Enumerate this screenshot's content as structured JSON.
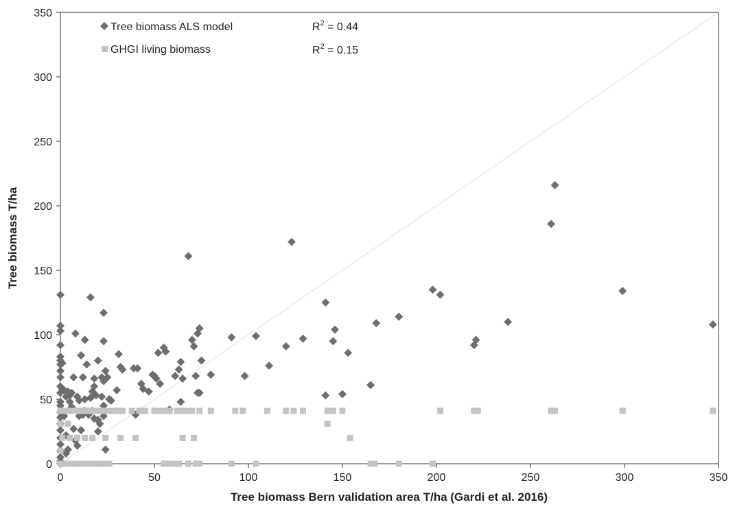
{
  "chart_data": {
    "type": "scatter",
    "xlabel": "Tree biomass Bern validation area T/ha (Gardi et al. 2016)",
    "ylabel": "Tree biomass T/ha",
    "xlim": [
      0,
      350
    ],
    "ylim": [
      0,
      350
    ],
    "x_ticks": [
      "0",
      "50",
      "100",
      "150",
      "200",
      "250",
      "300",
      "350"
    ],
    "y_ticks": [
      "0",
      "50",
      "100",
      "150",
      "200",
      "250",
      "300",
      "350"
    ],
    "grid": false,
    "reference_line": "1:1 line",
    "legend_placement": "top-left",
    "series": [
      {
        "name": "Tree biomass ALS model",
        "r2_label": "R",
        "r2_sup": "2",
        "r2_value": " = 0.44",
        "marker": "diamond",
        "color": "#6e6e6e",
        "points": [
          [
            0,
            131
          ],
          [
            0,
            107
          ],
          [
            0,
            103
          ],
          [
            0,
            92
          ],
          [
            0,
            83
          ],
          [
            0,
            80
          ],
          [
            0,
            77
          ],
          [
            0,
            72
          ],
          [
            0,
            67
          ],
          [
            0,
            60
          ],
          [
            0,
            55
          ],
          [
            0,
            48
          ],
          [
            0,
            45
          ],
          [
            0,
            40
          ],
          [
            0,
            36
          ],
          [
            0,
            31
          ],
          [
            0,
            26
          ],
          [
            0,
            20
          ],
          [
            0,
            15
          ],
          [
            0,
            10
          ],
          [
            0,
            5
          ],
          [
            0,
            2
          ],
          [
            1,
            78
          ],
          [
            1,
            58
          ],
          [
            2,
            57
          ],
          [
            2,
            37
          ],
          [
            3,
            52
          ],
          [
            3,
            22
          ],
          [
            3,
            8
          ],
          [
            4,
            56
          ],
          [
            4,
            11
          ],
          [
            5,
            53
          ],
          [
            5,
            48
          ],
          [
            6,
            55
          ],
          [
            6,
            44
          ],
          [
            7,
            67
          ],
          [
            7,
            42
          ],
          [
            7,
            27
          ],
          [
            8,
            101
          ],
          [
            8,
            18
          ],
          [
            9,
            52
          ],
          [
            9,
            14
          ],
          [
            10,
            49
          ],
          [
            10,
            37
          ],
          [
            11,
            84
          ],
          [
            11,
            26
          ],
          [
            12,
            67
          ],
          [
            12,
            38
          ],
          [
            13,
            96
          ],
          [
            13,
            50
          ],
          [
            13,
            41
          ],
          [
            14,
            77
          ],
          [
            15,
            38
          ],
          [
            16,
            129
          ],
          [
            16,
            51
          ],
          [
            17,
            56
          ],
          [
            17,
            41
          ],
          [
            18,
            66
          ],
          [
            18,
            60
          ],
          [
            18,
            35
          ],
          [
            19,
            53
          ],
          [
            20,
            34
          ],
          [
            20,
            80
          ],
          [
            20,
            25
          ],
          [
            21,
            31
          ],
          [
            22,
            67
          ],
          [
            22,
            52
          ],
          [
            23,
            117
          ],
          [
            23,
            95
          ],
          [
            23,
            64
          ],
          [
            23,
            45
          ],
          [
            23,
            37
          ],
          [
            24,
            11
          ],
          [
            24,
            72
          ],
          [
            25,
            67
          ],
          [
            26,
            50
          ],
          [
            27,
            49
          ],
          [
            30,
            57
          ],
          [
            31,
            85
          ],
          [
            32,
            75
          ],
          [
            33,
            73
          ],
          [
            39,
            74
          ],
          [
            40,
            38
          ],
          [
            41,
            74
          ],
          [
            43,
            62
          ],
          [
            44,
            58
          ],
          [
            47,
            56
          ],
          [
            49,
            69
          ],
          [
            50,
            68
          ],
          [
            51,
            66
          ],
          [
            52,
            86
          ],
          [
            53,
            62
          ],
          [
            55,
            90
          ],
          [
            56,
            87
          ],
          [
            58,
            42
          ],
          [
            61,
            68
          ],
          [
            63,
            73
          ],
          [
            64,
            79
          ],
          [
            64,
            48
          ],
          [
            65,
            66
          ],
          [
            68,
            161
          ],
          [
            70,
            96
          ],
          [
            71,
            91
          ],
          [
            72,
            68
          ],
          [
            73,
            55
          ],
          [
            73,
            101
          ],
          [
            74,
            105
          ],
          [
            74,
            55
          ],
          [
            75,
            80
          ],
          [
            80,
            69
          ],
          [
            91,
            98
          ],
          [
            98,
            68
          ],
          [
            104,
            99
          ],
          [
            111,
            76
          ],
          [
            120,
            91
          ],
          [
            123,
            172
          ],
          [
            129,
            97
          ],
          [
            141,
            125
          ],
          [
            141,
            53
          ],
          [
            145,
            95
          ],
          [
            146,
            104
          ],
          [
            150,
            54
          ],
          [
            153,
            86
          ],
          [
            165,
            61
          ],
          [
            168,
            109
          ],
          [
            180,
            114
          ],
          [
            198,
            135
          ],
          [
            202,
            131
          ],
          [
            220,
            92
          ],
          [
            221,
            96
          ],
          [
            238,
            110
          ],
          [
            261,
            186
          ],
          [
            263,
            216
          ],
          [
            299,
            134
          ],
          [
            347,
            108
          ]
        ]
      },
      {
        "name": "GHGI living biomass",
        "r2_label": "R",
        "r2_sup": "2",
        "r2_value": " = 0.15",
        "marker": "square",
        "color": "#c3c3c3",
        "points": [
          [
            0,
            0
          ],
          [
            2,
            0
          ],
          [
            4,
            0
          ],
          [
            6,
            0
          ],
          [
            8,
            0
          ],
          [
            10,
            0
          ],
          [
            12,
            0
          ],
          [
            14,
            0
          ],
          [
            16,
            0
          ],
          [
            18,
            0
          ],
          [
            20,
            0
          ],
          [
            22,
            0
          ],
          [
            24,
            0
          ],
          [
            26,
            0
          ],
          [
            55,
            0
          ],
          [
            57,
            0
          ],
          [
            60,
            0
          ],
          [
            63,
            0
          ],
          [
            68,
            0
          ],
          [
            72,
            0
          ],
          [
            74,
            0
          ],
          [
            91,
            0
          ],
          [
            104,
            0
          ],
          [
            165,
            0
          ],
          [
            167,
            0
          ],
          [
            180,
            0
          ],
          [
            198,
            0
          ],
          [
            0,
            10
          ],
          [
            1,
            20
          ],
          [
            5,
            20
          ],
          [
            9,
            20
          ],
          [
            13,
            20
          ],
          [
            17,
            20
          ],
          [
            24,
            20
          ],
          [
            32,
            20
          ],
          [
            40,
            20
          ],
          [
            65,
            20
          ],
          [
            71,
            20
          ],
          [
            154,
            20
          ],
          [
            0,
            31
          ],
          [
            4,
            31
          ],
          [
            142,
            31
          ],
          [
            0,
            41
          ],
          [
            3,
            41
          ],
          [
            5,
            41
          ],
          [
            7,
            41
          ],
          [
            9,
            41
          ],
          [
            11,
            41
          ],
          [
            13,
            41
          ],
          [
            15,
            41
          ],
          [
            17,
            41
          ],
          [
            19,
            41
          ],
          [
            21,
            41
          ],
          [
            23,
            41
          ],
          [
            25,
            41
          ],
          [
            27,
            41
          ],
          [
            29,
            41
          ],
          [
            31,
            41
          ],
          [
            33,
            41
          ],
          [
            38,
            41
          ],
          [
            42,
            41
          ],
          [
            45,
            41
          ],
          [
            50,
            41
          ],
          [
            53,
            41
          ],
          [
            56,
            41
          ],
          [
            58,
            41
          ],
          [
            62,
            41
          ],
          [
            65,
            41
          ],
          [
            67,
            41
          ],
          [
            70,
            41
          ],
          [
            74,
            41
          ],
          [
            80,
            41
          ],
          [
            93,
            41
          ],
          [
            97,
            41
          ],
          [
            110,
            41
          ],
          [
            120,
            41
          ],
          [
            124,
            41
          ],
          [
            129,
            41
          ],
          [
            142,
            41
          ],
          [
            145,
            41
          ],
          [
            150,
            41
          ],
          [
            202,
            41
          ],
          [
            220,
            41
          ],
          [
            222,
            41
          ],
          [
            261,
            41
          ],
          [
            263,
            41
          ],
          [
            299,
            41
          ],
          [
            347,
            41
          ]
        ]
      }
    ]
  }
}
